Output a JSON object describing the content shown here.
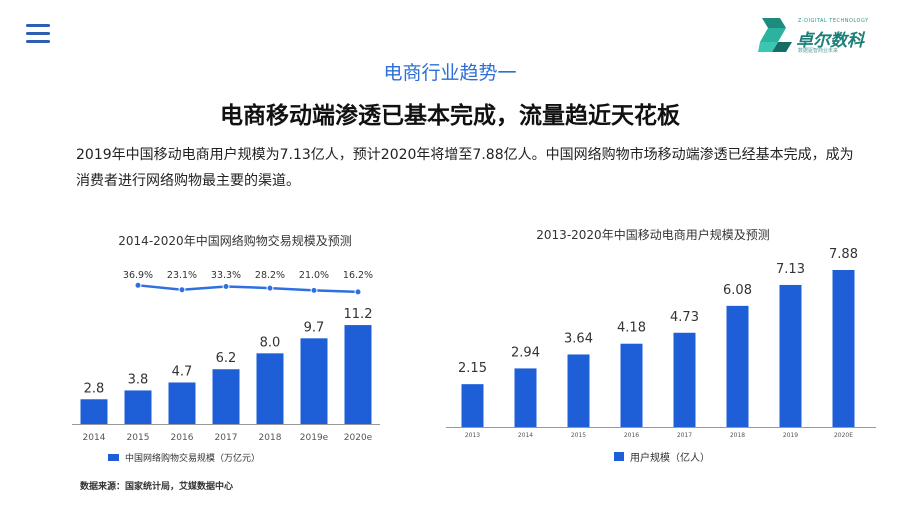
{
  "header": {
    "logo": {
      "tagline": "Z-DIGITAL TECHNOLOGY",
      "name": "卓尔数科",
      "sub": "数据驱智商业未来"
    },
    "subtitle": "电商行业趋势一",
    "headline": "电商移动端渗透已基本完成，流量趋近天花板",
    "description": "2019年中国移动电商用户规模为7.13亿人，预计2020年将增至7.88亿人。中国网络购物市场移动端渗透已经基本完成，成为消费者进行网络购物最主要的渠道。"
  },
  "colors": {
    "bar": "#1e5fd8",
    "line": "#2f6fe0",
    "accent": "#2d6fd6"
  },
  "source": "数据来源：国家统计局，艾媒数据中心",
  "chart_data": [
    {
      "type": "bar",
      "title": "2014-2020年中国网络购物交易规模及预测",
      "categories": [
        "2014",
        "2015",
        "2016",
        "2017",
        "2018",
        "2019e",
        "2020e"
      ],
      "series": [
        {
          "name": "中国网络购物交易规模（万亿元）",
          "values": [
            2.8,
            3.8,
            4.7,
            6.2,
            8.0,
            9.7,
            11.2
          ]
        }
      ],
      "value_labels": [
        "2.8",
        "3.8",
        "4.7",
        "6.2",
        "8.0",
        "9.7",
        "11.2"
      ],
      "growth_rate": {
        "values": [
          36.9,
          23.1,
          33.3,
          28.2,
          21.0,
          16.2
        ],
        "labels": [
          "36.9%",
          "23.1%",
          "33.3%",
          "28.2%",
          "21.0%",
          "16.2%"
        ]
      },
      "ylim": [
        0,
        12
      ],
      "legend": "bottom"
    },
    {
      "type": "bar",
      "title": "2013-2020年中国移动电商用户规模及预测",
      "categories": [
        "2013",
        "2014",
        "2015",
        "2016",
        "2017",
        "2018",
        "2019",
        "2020E"
      ],
      "series": [
        {
          "name": "用户规模（亿人）",
          "values": [
            2.15,
            2.94,
            3.64,
            4.18,
            4.73,
            6.08,
            7.13,
            7.88
          ]
        }
      ],
      "value_labels": [
        "2.15",
        "2.94",
        "3.64",
        "4.18",
        "4.73",
        "6.08",
        "7.13",
        "7.88"
      ],
      "ylim": [
        0,
        8.5
      ],
      "legend": "bottom"
    }
  ]
}
